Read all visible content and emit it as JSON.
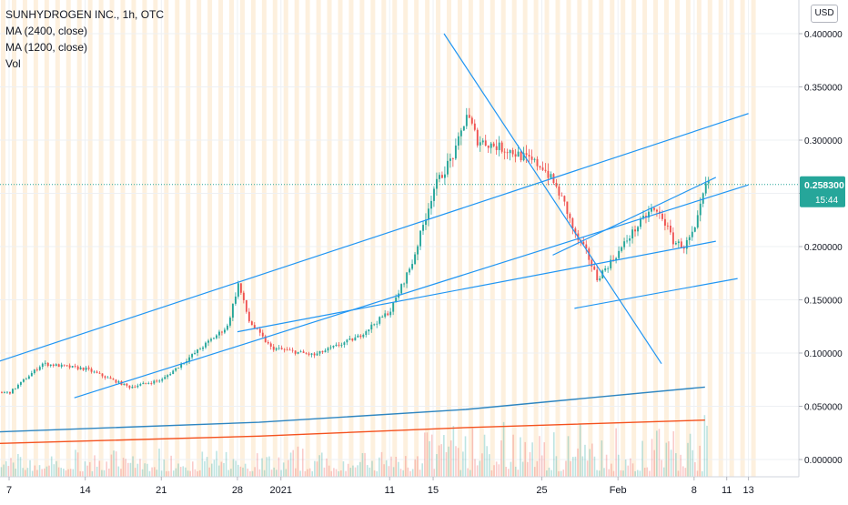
{
  "legend": {
    "title": "SUNHYDROGEN INC., 1h, OTC",
    "ma_slow": "MA (2400, close)",
    "ma_fast": "MA (1200, close)",
    "volume": "Vol"
  },
  "currency": "USD",
  "price_label": "0.258300",
  "countdown": "15:44",
  "colors": {
    "up": "#26a69a",
    "down": "#ef5350",
    "trendline": "#2196f3",
    "ma_slow": "#2e86c1",
    "ma_fast": "#f4511e",
    "session_stripe": "#fbe3c2",
    "grid": "#eef0f3",
    "axis_text": "#131722"
  },
  "chart_data": {
    "type": "candlestick",
    "title": "SUNHYDROGEN INC., 1h, OTC",
    "xlabel": "",
    "ylabel": "",
    "x_tick_labels": [
      "7",
      "14",
      "21",
      "28",
      "2021",
      "11",
      "15",
      "25",
      "Feb",
      "8",
      "11",
      "13"
    ],
    "y_tick_labels": [
      "0.000000",
      "0.050000",
      "0.100000",
      "0.150000",
      "0.200000",
      "0.250000",
      "0.300000",
      "0.350000",
      "0.400000"
    ],
    "ylim": [
      -0.012,
      0.4245
    ],
    "last_price": 0.2583,
    "grid": true,
    "legend_position": "top-left",
    "key_points": [
      {
        "date": "Dec 7",
        "price": 0.063
      },
      {
        "date": "Dec 10",
        "price": 0.09
      },
      {
        "date": "Dec 14",
        "price": 0.085
      },
      {
        "date": "Dec 18",
        "price": 0.068
      },
      {
        "date": "Dec 21",
        "price": 0.075
      },
      {
        "date": "Dec 24",
        "price": 0.1
      },
      {
        "date": "Dec 27",
        "price": 0.125
      },
      {
        "date": "Dec 28",
        "price": 0.165
      },
      {
        "date": "Dec 29",
        "price": 0.13
      },
      {
        "date": "Dec 31",
        "price": 0.105
      },
      {
        "date": "Jan 4",
        "price": 0.098
      },
      {
        "date": "Jan 8",
        "price": 0.115
      },
      {
        "date": "Jan 11",
        "price": 0.14
      },
      {
        "date": "Jan 13",
        "price": 0.185
      },
      {
        "date": "Jan 14",
        "price": 0.22
      },
      {
        "date": "Jan 15",
        "price": 0.255
      },
      {
        "date": "Jan 17",
        "price": 0.29
      },
      {
        "date": "Jan 18",
        "price": 0.325
      },
      {
        "date": "Jan 19",
        "price": 0.3
      },
      {
        "date": "Jan 22",
        "price": 0.29
      },
      {
        "date": "Jan 25",
        "price": 0.275
      },
      {
        "date": "Jan 26",
        "price": 0.26
      },
      {
        "date": "Jan 27",
        "price": 0.24
      },
      {
        "date": "Jan 28",
        "price": 0.21
      },
      {
        "date": "Jan 29",
        "price": 0.195
      },
      {
        "date": "Jan 30",
        "price": 0.17
      },
      {
        "date": "Feb 1",
        "price": 0.195
      },
      {
        "date": "Feb 2",
        "price": 0.21
      },
      {
        "date": "Feb 4",
        "price": 0.235
      },
      {
        "date": "Feb 5",
        "price": 0.228
      },
      {
        "date": "Feb 6",
        "price": 0.205
      },
      {
        "date": "Feb 7",
        "price": 0.2
      },
      {
        "date": "Feb 8",
        "price": 0.215
      },
      {
        "date": "Feb 9",
        "price": 0.258
      }
    ],
    "series": [
      {
        "name": "MA (2400, close)",
        "points": [
          {
            "date": "Dec 6",
            "value": 0.026
          },
          {
            "date": "Dec 30",
            "value": 0.035
          },
          {
            "date": "Jan 18",
            "value": 0.047
          },
          {
            "date": "Feb 9",
            "value": 0.068
          }
        ]
      },
      {
        "name": "MA (1200, close)",
        "points": [
          {
            "date": "Dec 6",
            "value": 0.015
          },
          {
            "date": "Dec 30",
            "value": 0.022
          },
          {
            "date": "Jan 18",
            "value": 0.03
          },
          {
            "date": "Feb 9",
            "value": 0.037
          }
        ]
      }
    ],
    "trendlines": [
      {
        "from": {
          "date": "Dec 6",
          "price": 0.092
        },
        "to": {
          "date": "Feb 13",
          "price": 0.325
        }
      },
      {
        "from": {
          "date": "Dec 13",
          "price": 0.058
        },
        "to": {
          "date": "Feb 13",
          "price": 0.258
        }
      },
      {
        "from": {
          "date": "Jan 28",
          "price": 0.142
        },
        "to": {
          "date": "Feb 12",
          "price": 0.17
        }
      },
      {
        "from": {
          "date": "Jan 26",
          "price": 0.192
        },
        "to": {
          "date": "Feb 10",
          "price": 0.265
        }
      },
      {
        "from": {
          "date": "Jan 16",
          "price": 0.4
        },
        "to": {
          "date": "Feb 5",
          "price": 0.09
        }
      },
      {
        "from": {
          "date": "Dec 28",
          "price": 0.12
        },
        "to": {
          "date": "Feb 10",
          "price": 0.205
        }
      }
    ]
  }
}
